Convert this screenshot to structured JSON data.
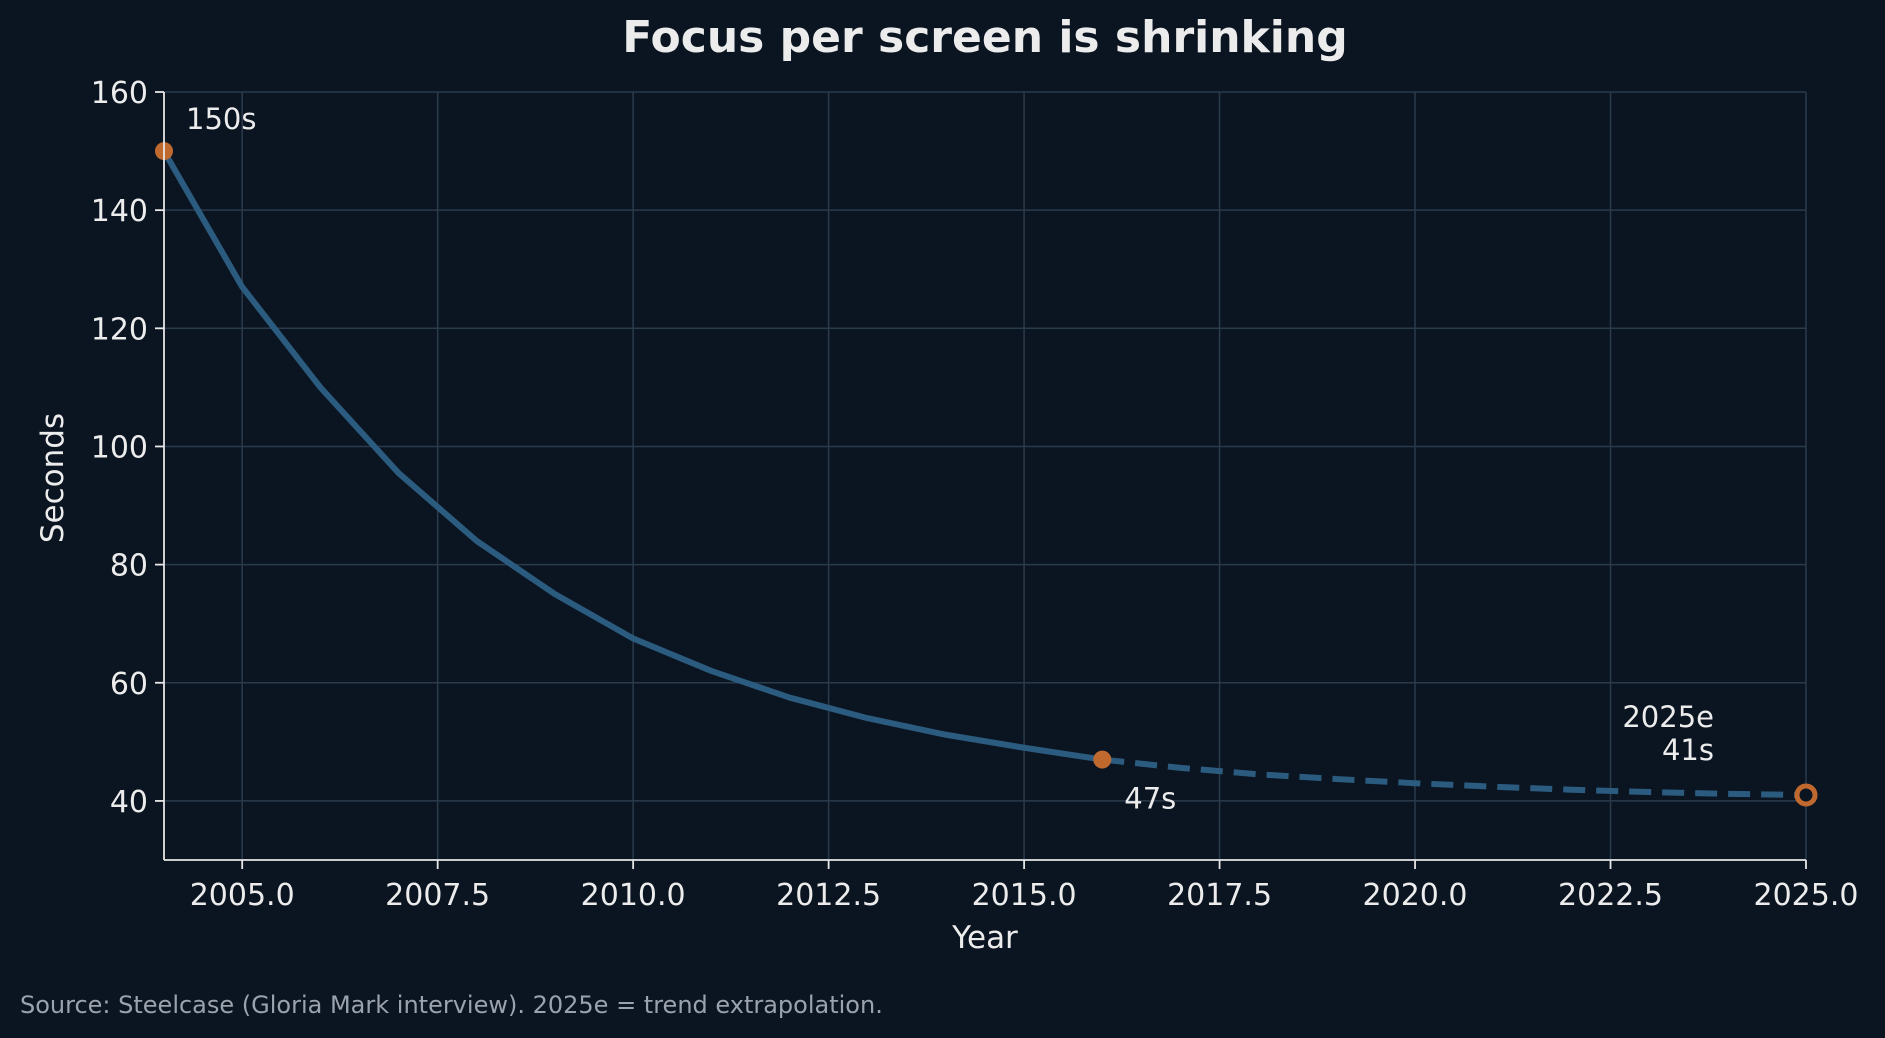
{
  "chart_data": {
    "type": "line",
    "title": "Focus per screen is shrinking",
    "xlabel": "Year",
    "ylabel": "Seconds",
    "xlim": [
      2004,
      2025
    ],
    "ylim": [
      30,
      160
    ],
    "x_ticks": [
      2005.0,
      2007.5,
      2010.0,
      2012.5,
      2015.0,
      2017.5,
      2020.0,
      2022.5,
      2025.0
    ],
    "x_tick_labels": [
      "2005.0",
      "2007.5",
      "2010.0",
      "2012.5",
      "2015.0",
      "2017.5",
      "2020.0",
      "2022.5",
      "2025.0"
    ],
    "y_ticks": [
      40,
      60,
      80,
      100,
      120,
      140,
      160
    ],
    "y_tick_labels": [
      "40",
      "60",
      "80",
      "100",
      "120",
      "140",
      "160"
    ],
    "grid": true,
    "series": [
      {
        "style": "solid",
        "color": "#2b5c80",
        "x": [
          2004,
          2005,
          2006,
          2007,
          2008,
          2009,
          2010,
          2011,
          2012,
          2013,
          2014,
          2015,
          2016
        ],
        "y": [
          150,
          127,
          110,
          95.5,
          84,
          75,
          67.5,
          62,
          57.5,
          54,
          51.2,
          49,
          47
        ]
      },
      {
        "style": "dashed",
        "color": "#2b5c80",
        "x": [
          2016,
          2017,
          2018,
          2019,
          2020,
          2021,
          2022,
          2023,
          2024,
          2025
        ],
        "y": [
          47,
          45.6,
          44.5,
          43.7,
          43,
          42.4,
          41.9,
          41.5,
          41.2,
          41
        ]
      }
    ],
    "markers": [
      {
        "x": 2004,
        "y": 150,
        "filled": true,
        "color": "#c0692f"
      },
      {
        "x": 2016,
        "y": 47,
        "filled": true,
        "color": "#c0692f"
      },
      {
        "x": 2025,
        "y": 41,
        "filled": false,
        "color": "#c0692f"
      }
    ],
    "annotations": [
      {
        "lines": [
          "150s"
        ],
        "x": 2004,
        "y": 150,
        "placement": "above-right"
      },
      {
        "lines": [
          "47s"
        ],
        "x": 2016,
        "y": 47,
        "placement": "below-right"
      },
      {
        "lines": [
          "2025e",
          "41s"
        ],
        "x": 2025,
        "y": 41,
        "placement": "above-left"
      }
    ],
    "source": "Source: Steelcase (Gloria Mark interview). 2025e = trend extrapolation."
  },
  "colors": {
    "background": "#0b1521",
    "line": "#2b5c80",
    "marker": "#c0692f",
    "grid": "#2a3b4c",
    "axis": "#e6e6e6",
    "text": "#ececec"
  }
}
